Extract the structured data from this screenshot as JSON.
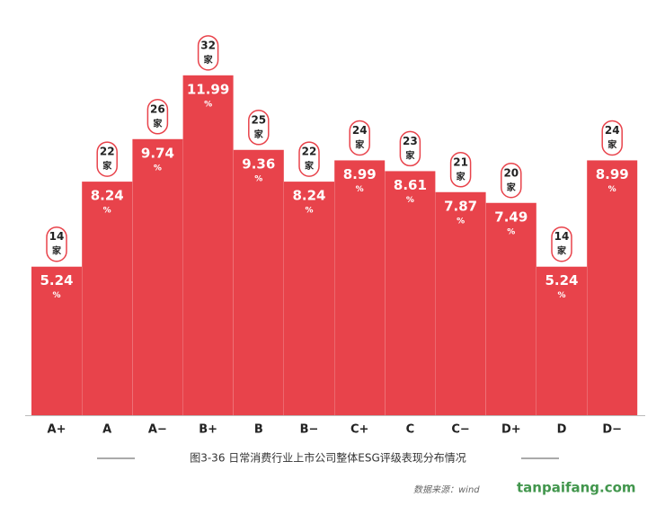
{
  "chart_data": {
    "type": "bar",
    "categories": [
      "A+",
      "A",
      "A−",
      "B+",
      "B",
      "B−",
      "C+",
      "C",
      "C−",
      "D+",
      "D",
      "D−"
    ],
    "values": [
      5.24,
      8.24,
      9.74,
      11.99,
      9.36,
      8.24,
      8.99,
      8.61,
      7.87,
      7.49,
      5.24,
      8.99
    ],
    "value_unit": "%",
    "counts": [
      14,
      22,
      26,
      32,
      25,
      22,
      24,
      23,
      21,
      20,
      14,
      24
    ],
    "count_unit": "家",
    "color": "#e8434b",
    "ylim": [
      0,
      12
    ],
    "caption": "图3-36  日常消费行业上市公司整体ESG评级表现分布情况",
    "source": "数据来源：wind",
    "watermark": "tanpaifang.com"
  }
}
